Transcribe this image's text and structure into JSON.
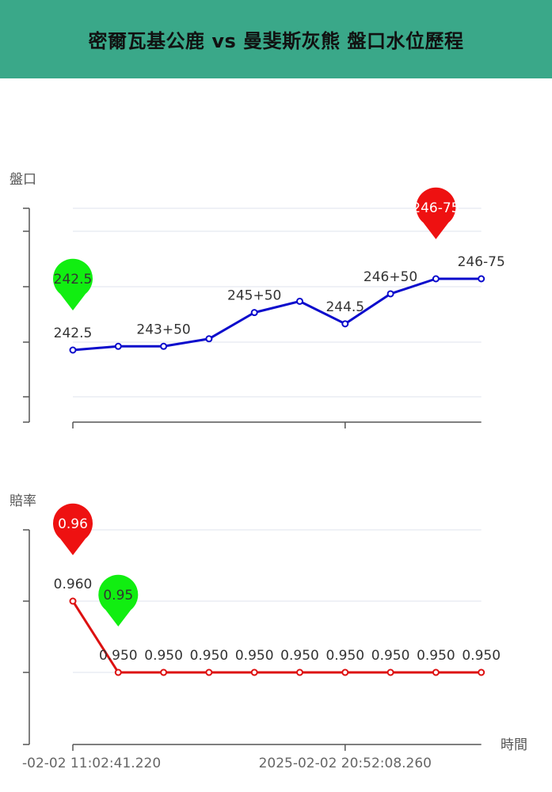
{
  "header": {
    "title": "密爾瓦基公鹿 vs 曼斐斯灰熊 盤口水位歷程"
  },
  "chart_data": [
    {
      "type": "line",
      "ylabel": "盤口",
      "series": [
        {
          "color": "#0a0acc",
          "values": [
            242.5,
            242.6,
            242.6,
            242.8,
            243.5,
            243.8,
            243.2,
            244.0,
            244.4,
            244.4
          ],
          "labels": [
            "242.5",
            "",
            "243+50",
            "",
            "245+50",
            "",
            "244.5",
            "246+50",
            "",
            "246-75"
          ]
        }
      ],
      "markers": [
        {
          "kind": "min",
          "index": 0,
          "text": "242.5",
          "color": "#11ee11"
        },
        {
          "kind": "max",
          "index": 8,
          "text": "246-75",
          "color": "#ee1111"
        }
      ],
      "grid": true
    },
    {
      "type": "line",
      "ylabel": "賠率",
      "xlabel": "時間",
      "x_tick_labels": [
        "-02-02 11:02:41.220",
        "2025-02-02 20:52:08.260"
      ],
      "series": [
        {
          "color": "#dd1111",
          "values": [
            0.96,
            0.95,
            0.95,
            0.95,
            0.95,
            0.95,
            0.95,
            0.95,
            0.95,
            0.95
          ],
          "labels": [
            "0.960",
            "0.950",
            "0.950",
            "0.950",
            "0.950",
            "0.950",
            "0.950",
            "0.950",
            "0.950",
            "0.950"
          ]
        }
      ],
      "markers": [
        {
          "kind": "max",
          "index": 0,
          "text": "0.96",
          "color": "#ee1111"
        },
        {
          "kind": "min",
          "index": 1,
          "text": "0.95",
          "color": "#11ee11"
        }
      ],
      "grid": true
    }
  ]
}
